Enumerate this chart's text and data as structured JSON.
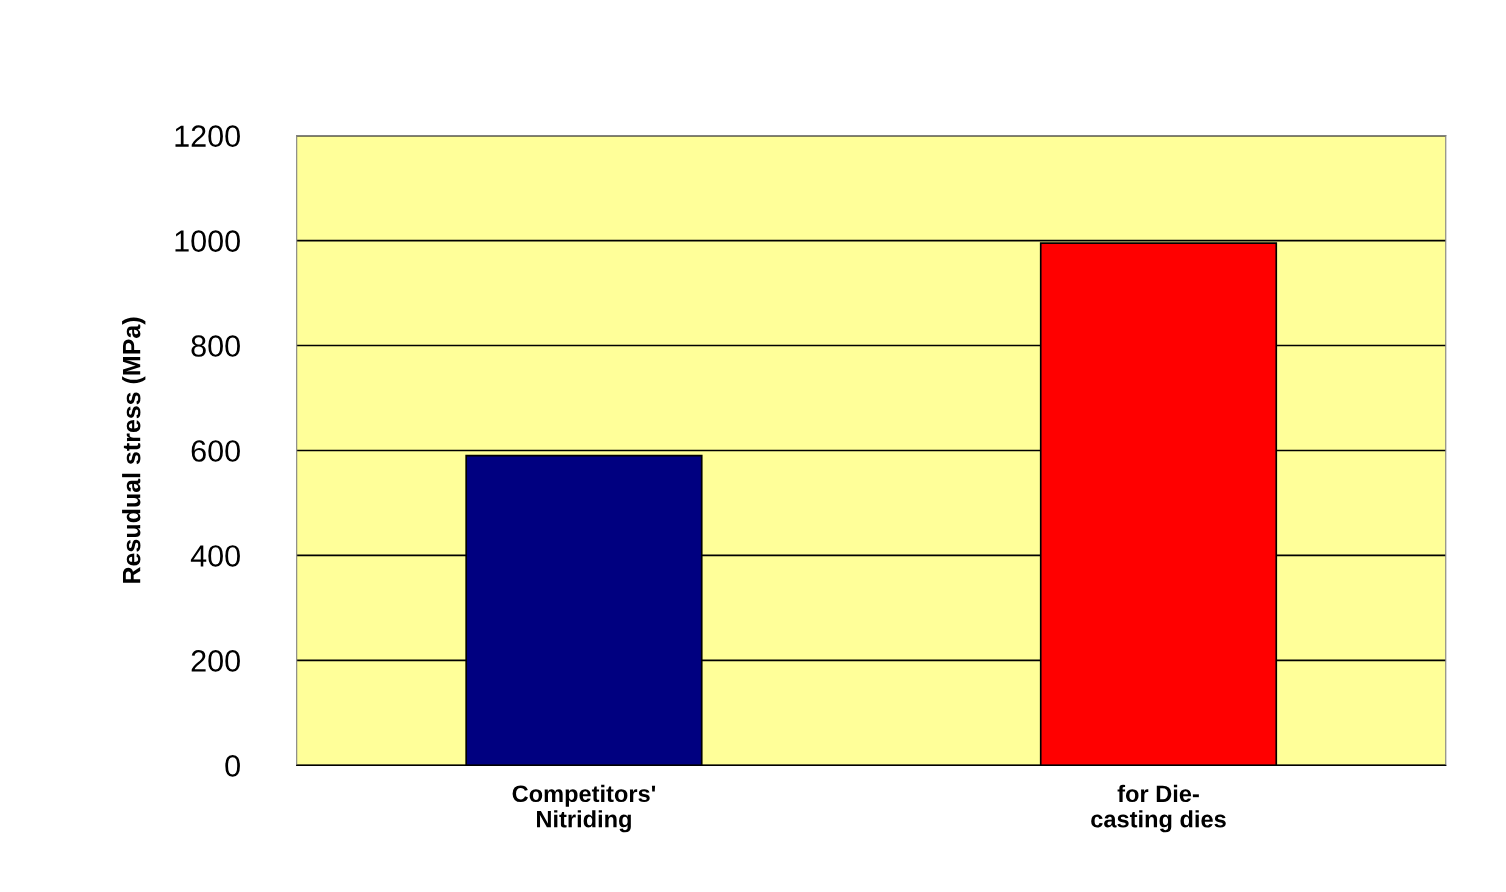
{
  "chart_data": {
    "type": "bar",
    "ylabel": "Resudual stress (MPa)",
    "categories": [
      "Competitors'\nNitriding",
      "for Die-\ncasting dies"
    ],
    "values": [
      590,
      995
    ],
    "colors": [
      "#000080",
      "#ff0000"
    ],
    "ylim": [
      0,
      1200
    ],
    "yticks": [
      0,
      200,
      400,
      600,
      800,
      1000,
      1200
    ],
    "grid": "y"
  }
}
